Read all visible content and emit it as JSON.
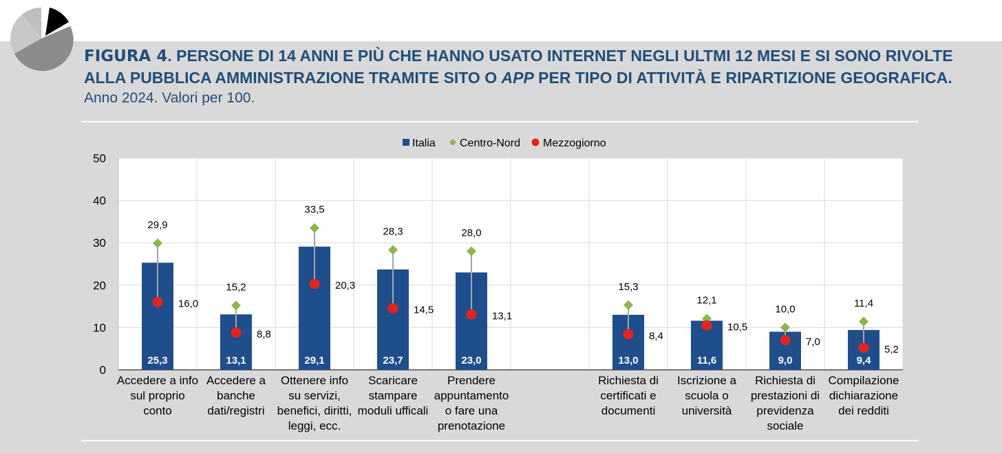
{
  "header": {
    "figure_label": "FIGURA 4",
    "title_part1": ". PERSONE DI 14 ANNI E PIÙ CHE HANNO USATO INTERNET NEGLI ULTMI 12 MESI E SI SONO RIVOLTE ALLA PUBBLICA AMMINISTRAZIONE TRAMITE SITO O ",
    "title_italic": "APP",
    "title_part2": " PER TIPO DI ATTIVITÀ E RIPARTIZIONE GEOGRAFICA.",
    "subtitle": "Anno 2024. Valori per 100."
  },
  "colors": {
    "italia": "#1f4e8c",
    "centro_nord": "#8db548",
    "mezzogiorno": "#e3231c",
    "title": "#1f4e79"
  },
  "chart_data": {
    "type": "bar",
    "categories": [
      "Accedere a info sul proprio conto",
      "Accedere a banche dati/registri",
      "Ottenere info su servizi, benefici, diritti, leggi,  ecc.",
      "Scaricare stampare moduli ufficali",
      "Prendere appuntamento o fare una prenotazione",
      "",
      "Richiesta di certificati e documenti",
      "Iscrizione a scuola o università",
      "Richiesta di prestazioni di previdenza sociale",
      "Compilazione dichiarazione dei redditi"
    ],
    "category_lines": [
      [
        "Accedere a info",
        "sul proprio",
        "conto"
      ],
      [
        "Accedere a",
        "banche",
        "dati/registri"
      ],
      [
        "Ottenere info",
        "su servizi,",
        "benefici, diritti,",
        "leggi,  ecc."
      ],
      [
        "Scaricare",
        "stampare",
        "moduli ufficali"
      ],
      [
        "Prendere",
        "appuntamento",
        "o fare una",
        "prenotazione"
      ],
      [],
      [
        "Richiesta di",
        "certificati e",
        "documenti"
      ],
      [
        "Iscrizione a",
        "scuola o",
        "università"
      ],
      [
        "Richiesta di",
        "prestazioni di",
        "previdenza",
        "sociale"
      ],
      [
        "Compilazione",
        "dichiarazione",
        "dei redditi"
      ]
    ],
    "series": [
      {
        "name": "Italia",
        "kind": "bar",
        "values": [
          25.3,
          13.1,
          29.1,
          23.7,
          23.0,
          null,
          13.0,
          11.6,
          9.0,
          9.4
        ],
        "labels": [
          "25,3",
          "13,1",
          "29,1",
          "23,7",
          "23,0",
          "",
          "13,0",
          "11,6",
          "9,0",
          "9,4"
        ]
      },
      {
        "name": "Centro-Nord",
        "kind": "diamond",
        "values": [
          29.9,
          15.2,
          33.5,
          28.3,
          28.0,
          null,
          15.3,
          12.1,
          10.0,
          11.4
        ],
        "labels": [
          "29,9",
          "15,2",
          "33,5",
          "28,3",
          "28,0",
          "",
          "15,3",
          "12,1",
          "10,0",
          "11,4"
        ]
      },
      {
        "name": "Mezzogiorno",
        "kind": "circle",
        "values": [
          16.0,
          8.8,
          20.3,
          14.5,
          13.1,
          null,
          8.4,
          10.5,
          7.0,
          5.2
        ],
        "labels": [
          "16,0",
          "8,8",
          "20,3",
          "14,5",
          "13,1",
          "",
          "8,4",
          "10,5",
          "7,0",
          "5,2"
        ]
      }
    ],
    "yticks": [
      "0",
      "10",
      "20",
      "30",
      "40",
      "50"
    ],
    "ylim": [
      0,
      50
    ],
    "grid": true,
    "legend_position": "top"
  }
}
